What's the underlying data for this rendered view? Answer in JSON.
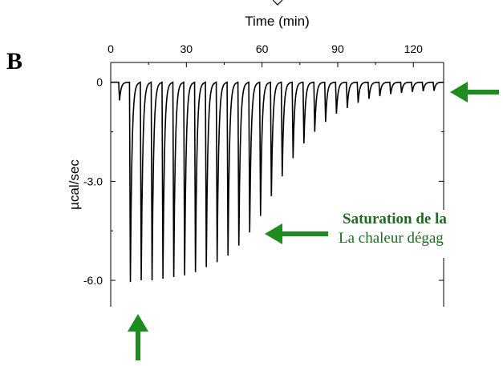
{
  "panel_label": "B",
  "callout": {
    "title": "Saturation de la",
    "text": "La chaleur dégag"
  },
  "colors": {
    "trace": "#000000",
    "arrow": "#1e8c1e",
    "callout_text": "#1f6b1f"
  },
  "chart_data": {
    "type": "line",
    "title": "",
    "xlabel": "Time (min)",
    "ylabel": "µcal/sec",
    "x_axis_position": "top",
    "xlim": [
      0,
      132
    ],
    "ylim": [
      -6.8,
      0.6
    ],
    "xticks": [
      0,
      30,
      60,
      90,
      120
    ],
    "xtick_labels": [
      "0",
      "30",
      "60",
      "90",
      "120"
    ],
    "yticks": [
      0,
      -3.0,
      -6.0
    ],
    "ytick_labels": [
      "0",
      "-3.0",
      "-6.0"
    ],
    "grid": false,
    "baseline": 0,
    "peaks": {
      "x": [
        3.5,
        7.8,
        12.1,
        16.4,
        20.7,
        25.0,
        29.3,
        33.6,
        37.9,
        42.2,
        46.5,
        50.8,
        55.1,
        59.4,
        63.7,
        68.0,
        72.3,
        76.6,
        80.9,
        85.2,
        89.5,
        93.8,
        98.1,
        102.4,
        106.7,
        111.0,
        115.3,
        119.6,
        123.9,
        128.2
      ],
      "y": [
        -0.55,
        -6.05,
        -6.0,
        -6.0,
        -5.95,
        -5.9,
        -5.85,
        -5.75,
        -5.6,
        -5.45,
        -5.25,
        -4.95,
        -4.55,
        -4.05,
        -3.45,
        -2.85,
        -2.3,
        -1.85,
        -1.5,
        -1.2,
        -0.95,
        -0.78,
        -0.62,
        -0.5,
        -0.42,
        -0.36,
        -0.32,
        -0.29,
        -0.27,
        -0.26
      ]
    }
  }
}
